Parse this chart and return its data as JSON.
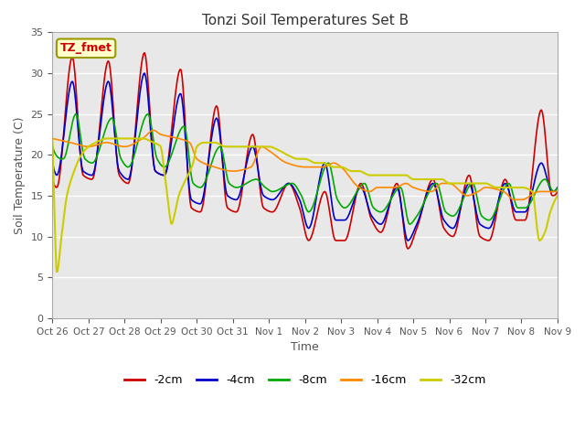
{
  "title": "Tonzi Soil Temperatures Set B",
  "xlabel": "Time",
  "ylabel": "Soil Temperature (C)",
  "ylim": [
    0,
    35
  ],
  "xlim": [
    0,
    14
  ],
  "tick_labels": [
    "Oct 26",
    "Oct 27",
    "Oct 28",
    "Oct 29",
    "Oct 30",
    "Oct 31",
    "Nov 1",
    "Nov 2",
    "Nov 3",
    "Nov 4",
    "Nov 5",
    "Nov 6",
    "Nov 7",
    "Nov 8",
    "Nov 9"
  ],
  "colors": {
    "-2cm": "#cc0000",
    "-4cm": "#0000cc",
    "-8cm": "#00aa00",
    "-16cm": "#ff8800",
    "-32cm": "#cccc00"
  },
  "series_names": [
    "-2cm",
    "-4cm",
    "-8cm",
    "-16cm",
    "-32cm"
  ]
}
